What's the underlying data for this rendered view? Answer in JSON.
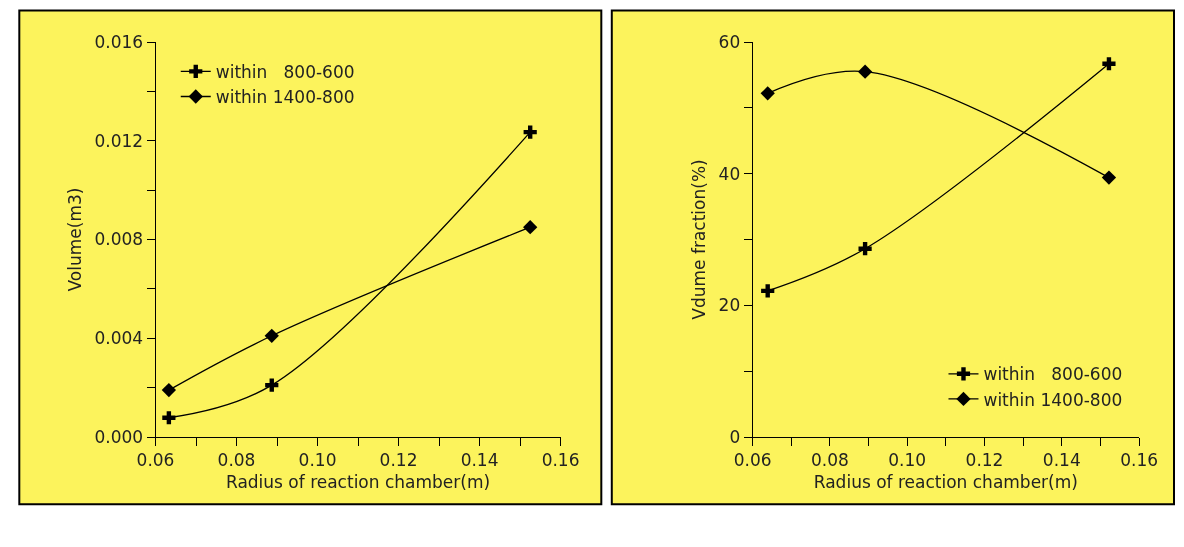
{
  "chart_data": [
    {
      "type": "line",
      "xlabel": "Radius of reaction chamber(m)",
      "ylabel": "Volume(m3)",
      "x": [
        0.0633,
        0.0887,
        0.1525
      ],
      "series": [
        {
          "name": "within   800-600",
          "color": "#000000",
          "marker": "cross",
          "values": [
            0.00078,
            0.0021,
            0.01235
          ]
        },
        {
          "name": "within 1400-800",
          "color": "#000000",
          "marker": "diamond",
          "values": [
            0.0019,
            0.0041,
            0.0085
          ]
        }
      ],
      "xlim": [
        0.06,
        0.16
      ],
      "xticks": [
        0.06,
        {
          "value": 0.07,
          "label": null
        },
        0.08,
        {
          "value": 0.09,
          "label": null
        },
        {
          "value": 0.1,
          "label": "0.10"
        },
        {
          "value": 0.11,
          "label": null
        },
        0.12,
        {
          "value": 0.13,
          "label": null
        },
        0.14,
        {
          "value": 0.15,
          "label": null
        },
        0.16
      ],
      "ylim": [
        0,
        0.016
      ],
      "yticks": [
        {
          "value": 0,
          "label": "0.000"
        },
        {
          "value": 0.002,
          "label": null
        },
        0.004,
        {
          "value": 0.006,
          "label": null
        },
        0.008,
        {
          "value": 0.01,
          "label": null
        },
        0.012,
        {
          "value": 0.014,
          "label": null
        },
        0.016
      ],
      "legend": "top left",
      "grid": false,
      "line_style": "solid"
    },
    {
      "type": "line",
      "xlabel": "Radius of reaction chamber(m)",
      "ylabel": "Vdume fraction(%)",
      "x": [
        0.0639,
        0.0891,
        0.1522
      ],
      "series": [
        {
          "name": "within   800-600",
          "color": "#000000",
          "marker": "cross",
          "values": [
            22.2,
            28.6,
            56.7
          ]
        },
        {
          "name": "within 1400-800",
          "color": "#000000",
          "marker": "diamond",
          "values": [
            52.2,
            55.5,
            39.4
          ]
        }
      ],
      "xlim": [
        0.06,
        0.16
      ],
      "xticks": [
        0.06,
        {
          "value": 0.07,
          "label": null
        },
        0.08,
        {
          "value": 0.09,
          "label": null
        },
        {
          "value": 0.1,
          "label": "0.10"
        },
        {
          "value": 0.11,
          "label": null
        },
        0.12,
        {
          "value": 0.13,
          "label": null
        },
        0.14,
        {
          "value": 0.15,
          "label": null
        },
        0.16
      ],
      "ylim": [
        0,
        60
      ],
      "yticks": [
        0,
        {
          "value": 10,
          "label": null
        },
        20,
        {
          "value": 30,
          "label": null
        },
        40,
        {
          "value": 50,
          "label": null
        },
        60
      ],
      "legend": "bottom right",
      "grid": false,
      "line_style": "solid"
    }
  ]
}
